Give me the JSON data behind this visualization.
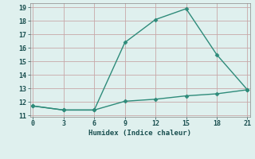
{
  "line1_x": [
    0,
    3,
    6,
    9,
    12,
    15,
    18,
    21
  ],
  "line1_y": [
    11.7,
    11.4,
    11.4,
    16.4,
    18.1,
    18.9,
    15.5,
    12.9
  ],
  "line2_x": [
    0,
    3,
    6,
    9,
    12,
    15,
    18,
    21
  ],
  "line2_y": [
    11.7,
    11.4,
    11.4,
    12.05,
    12.2,
    12.45,
    12.6,
    12.9
  ],
  "line_color": "#2e8b7a",
  "bg_color": "#dff0ee",
  "grid_color": "#c8a8a8",
  "xlabel": "Humidex (Indice chaleur)",
  "xlim": [
    0,
    21
  ],
  "ylim": [
    11,
    19
  ],
  "xticks": [
    0,
    3,
    6,
    9,
    12,
    15,
    18,
    21
  ],
  "yticks": [
    11,
    12,
    13,
    14,
    15,
    16,
    17,
    18,
    19
  ],
  "marker": "D",
  "markersize": 2.5,
  "linewidth": 1.0
}
